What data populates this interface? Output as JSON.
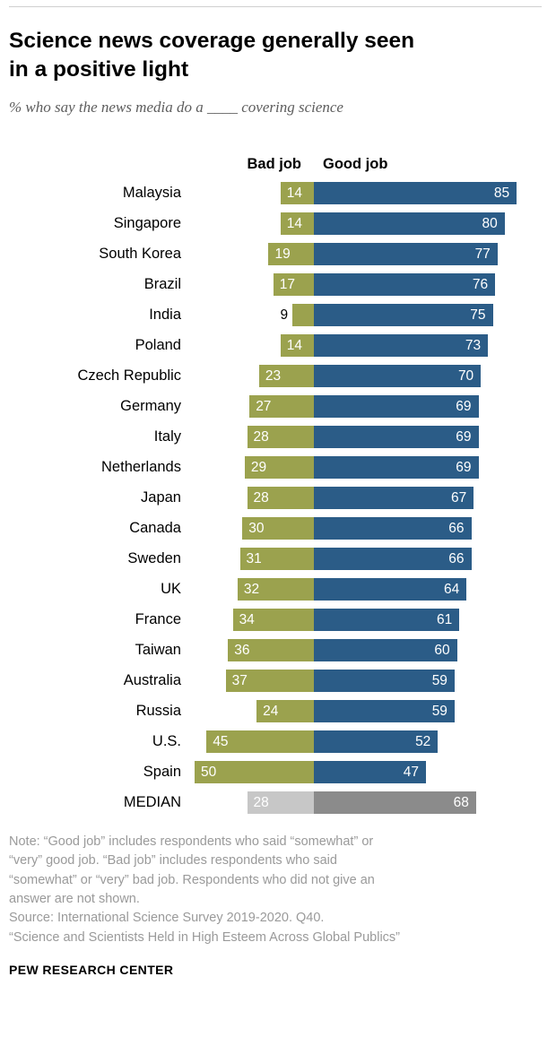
{
  "chart_data": {
    "type": "bar",
    "orientation": "diverging-horizontal",
    "title": "Science news coverage generally seen in a positive light",
    "subtitle": "% who say the news media do a ____ covering science",
    "column_headers": {
      "bad": "Bad job",
      "good": "Good job"
    },
    "categories": [
      "Malaysia",
      "Singapore",
      "South Korea",
      "Brazil",
      "India",
      "Poland",
      "Czech Republic",
      "Germany",
      "Italy",
      "Netherlands",
      "Japan",
      "Canada",
      "Sweden",
      "UK",
      "France",
      "Taiwan",
      "Australia",
      "Russia",
      "U.S.",
      "Spain"
    ],
    "series": [
      {
        "name": "Bad job",
        "color": "#9ba24e",
        "values": [
          14,
          14,
          19,
          17,
          9,
          14,
          23,
          27,
          28,
          29,
          28,
          30,
          31,
          32,
          34,
          36,
          37,
          24,
          45,
          50
        ]
      },
      {
        "name": "Good job",
        "color": "#2b5c87",
        "values": [
          85,
          80,
          77,
          76,
          75,
          73,
          70,
          69,
          69,
          69,
          67,
          66,
          66,
          64,
          61,
          60,
          59,
          59,
          52,
          47
        ]
      }
    ],
    "median": {
      "label": "MEDIAN",
      "bad": 28,
      "good": 68,
      "bad_color": "#c7c7c7",
      "good_color": "#8b8b8b"
    },
    "xlim": [
      -50,
      85
    ],
    "value_labels": "on-bar, white; small bad values shown outside bar in black",
    "legend_position": "column headers above bars",
    "grid": false
  },
  "ui": {
    "title_line1": "Science news coverage generally seen",
    "title_line2": "in a positive light"
  },
  "notes": {
    "lines": [
      "Note: “Good job” includes respondents who said “somewhat” or",
      "“very” good job. “Bad job” includes respondents who said",
      "“somewhat” or “very” bad job. Respondents who did not give an",
      "answer are not shown.",
      "Source: International Science Survey 2019-2020. Q40.",
      "“Science and Scientists Held in High Esteem Across Global Publics”"
    ]
  },
  "footer": {
    "brand": "PEW RESEARCH CENTER"
  }
}
